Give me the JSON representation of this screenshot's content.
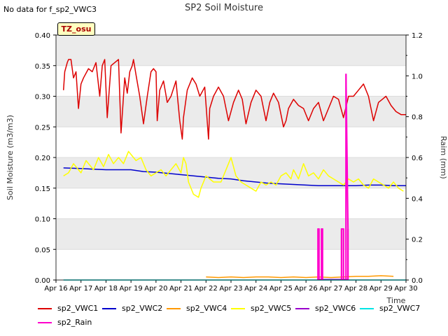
{
  "no_data_text": "No data for f_sp2_VWC3",
  "badge_text": "TZ_osu",
  "chart_data": {
    "type": "line",
    "title": "SP2 Soil Moisture",
    "xlabel": "Time",
    "ylabel": "Soil Moisture (m3/m3)",
    "ylabel_right": "Raim (mm)",
    "xlim": [
      0,
      14
    ],
    "ylim": [
      0,
      0.4
    ],
    "ylim_right": [
      0,
      1.2
    ],
    "x_tick_values": [
      0,
      1,
      2,
      3,
      4,
      5,
      6,
      7,
      8,
      9,
      10,
      11,
      12,
      13,
      14
    ],
    "x_tick_labels": [
      "Apr 16",
      "Apr 17",
      "Apr 18",
      "Apr 19",
      "Apr 20",
      "Apr 21",
      "Apr 22",
      "Apr 23",
      "Apr 24",
      "Apr 25",
      "Apr 26",
      "Apr 27",
      "Apr 28",
      "Apr 29",
      "Apr 30"
    ],
    "y_tick_values": [
      0,
      0.05,
      0.1,
      0.15,
      0.2,
      0.25,
      0.3,
      0.35,
      0.4
    ],
    "y_tick_labels": [
      "0.00",
      "0.05",
      "0.10",
      "0.15",
      "0.20",
      "0.25",
      "0.30",
      "0.35",
      "0.40"
    ],
    "y2_tick_values": [
      0,
      0.2,
      0.4,
      0.6,
      0.8,
      1.0,
      1.2
    ],
    "y2_tick_labels": [
      "0.0",
      "0.2",
      "0.4",
      "0.6",
      "0.8",
      "1.0",
      "1.2"
    ],
    "grid": "horizontal bands",
    "legend_placement": "bottom",
    "series": [
      {
        "name": "sp2_VWC1",
        "color": "#dd0000",
        "axis": "left",
        "x": [
          0.3,
          0.35,
          0.45,
          0.5,
          0.6,
          0.7,
          0.8,
          0.9,
          1.0,
          1.1,
          1.3,
          1.45,
          1.6,
          1.75,
          1.85,
          1.95,
          2.05,
          2.2,
          2.35,
          2.5,
          2.6,
          2.75,
          2.85,
          2.95,
          3.05,
          3.1,
          3.2,
          3.35,
          3.5,
          3.65,
          3.8,
          3.9,
          4.0,
          4.05,
          4.15,
          4.3,
          4.45,
          4.6,
          4.8,
          4.95,
          5.05,
          5.1,
          5.25,
          5.45,
          5.6,
          5.75,
          5.95,
          6.1,
          6.15,
          6.3,
          6.5,
          6.7,
          6.9,
          7.1,
          7.3,
          7.45,
          7.6,
          7.8,
          8.0,
          8.2,
          8.4,
          8.55,
          8.7,
          8.9,
          9.1,
          9.2,
          9.3,
          9.5,
          9.7,
          9.9,
          10.1,
          10.3,
          10.5,
          10.7,
          10.9,
          11.1,
          11.3,
          11.5,
          11.7,
          11.9,
          12.1,
          12.3,
          12.5,
          12.7,
          12.9,
          13.05,
          13.2,
          13.4,
          13.6,
          13.8,
          13.9,
          14.0
        ],
        "y": [
          0.31,
          0.34,
          0.355,
          0.36,
          0.36,
          0.33,
          0.34,
          0.28,
          0.32,
          0.33,
          0.345,
          0.34,
          0.355,
          0.3,
          0.35,
          0.36,
          0.265,
          0.35,
          0.355,
          0.36,
          0.24,
          0.33,
          0.305,
          0.34,
          0.35,
          0.36,
          0.335,
          0.3,
          0.255,
          0.3,
          0.34,
          0.345,
          0.34,
          0.26,
          0.31,
          0.325,
          0.29,
          0.3,
          0.325,
          0.26,
          0.23,
          0.265,
          0.31,
          0.33,
          0.32,
          0.3,
          0.315,
          0.23,
          0.28,
          0.3,
          0.315,
          0.3,
          0.26,
          0.29,
          0.31,
          0.295,
          0.255,
          0.29,
          0.31,
          0.3,
          0.26,
          0.29,
          0.305,
          0.29,
          0.25,
          0.26,
          0.28,
          0.295,
          0.285,
          0.28,
          0.26,
          0.28,
          0.29,
          0.26,
          0.28,
          0.3,
          0.295,
          0.265,
          0.3,
          0.3,
          0.31,
          0.32,
          0.3,
          0.26,
          0.29,
          0.295,
          0.3,
          0.285,
          0.275,
          0.27,
          0.27,
          0.27
        ]
      },
      {
        "name": "sp2_VWC2",
        "color": "#0000cc",
        "axis": "left",
        "x": [
          0.3,
          1.0,
          2.0,
          3.0,
          3.5,
          4.0,
          4.5,
          5.0,
          5.5,
          6.0,
          6.5,
          7.0,
          7.5,
          8.0,
          8.5,
          9.0,
          9.5,
          10.0,
          10.5,
          11.0,
          11.5,
          12.0,
          12.5,
          13.0,
          13.5,
          14.0
        ],
        "y": [
          0.183,
          0.182,
          0.18,
          0.18,
          0.177,
          0.176,
          0.174,
          0.172,
          0.17,
          0.168,
          0.166,
          0.165,
          0.162,
          0.16,
          0.158,
          0.157,
          0.156,
          0.155,
          0.154,
          0.154,
          0.154,
          0.154,
          0.155,
          0.155,
          0.154,
          0.154
        ]
      },
      {
        "name": "sp2_VWC4",
        "color": "#ff9900",
        "axis": "left",
        "x": [
          6.0,
          6.5,
          7.0,
          7.5,
          8.0,
          8.5,
          9.0,
          9.5,
          10.0,
          10.5,
          11.0,
          11.5,
          12.0,
          12.5,
          13.0,
          13.5
        ],
        "y": [
          0.005,
          0.004,
          0.005,
          0.004,
          0.005,
          0.005,
          0.004,
          0.005,
          0.004,
          0.005,
          0.004,
          0.005,
          0.006,
          0.006,
          0.007,
          0.006
        ]
      },
      {
        "name": "sp2_VWC5",
        "color": "#ffff00",
        "axis": "left",
        "x": [
          0.3,
          0.5,
          0.7,
          1.0,
          1.2,
          1.5,
          1.7,
          1.9,
          2.1,
          2.3,
          2.5,
          2.7,
          2.9,
          3.1,
          3.2,
          3.4,
          3.6,
          3.8,
          4.0,
          4.2,
          4.4,
          4.6,
          4.8,
          5.0,
          5.1,
          5.2,
          5.3,
          5.5,
          5.7,
          5.8,
          6.0,
          6.3,
          6.6,
          6.9,
          7.0,
          7.2,
          7.4,
          7.6,
          7.8,
          8.0,
          8.2,
          8.4,
          8.6,
          8.8,
          9.0,
          9.2,
          9.4,
          9.5,
          9.7,
          9.9,
          10.1,
          10.3,
          10.5,
          10.7,
          10.9,
          11.1,
          11.3,
          11.5,
          11.7,
          11.9,
          12.1,
          12.3,
          12.5,
          12.7,
          12.9,
          13.1,
          13.3,
          13.5,
          13.7,
          13.9
        ],
        "y": [
          0.17,
          0.175,
          0.19,
          0.175,
          0.195,
          0.18,
          0.2,
          0.185,
          0.205,
          0.19,
          0.2,
          0.19,
          0.21,
          0.2,
          0.195,
          0.2,
          0.18,
          0.17,
          0.175,
          0.18,
          0.17,
          0.18,
          0.19,
          0.175,
          0.2,
          0.19,
          0.16,
          0.14,
          0.135,
          0.15,
          0.17,
          0.16,
          0.16,
          0.19,
          0.2,
          0.17,
          0.16,
          0.155,
          0.15,
          0.145,
          0.16,
          0.155,
          0.16,
          0.155,
          0.17,
          0.175,
          0.165,
          0.18,
          0.165,
          0.19,
          0.17,
          0.175,
          0.165,
          0.18,
          0.17,
          0.165,
          0.16,
          0.155,
          0.165,
          0.16,
          0.165,
          0.155,
          0.15,
          0.165,
          0.16,
          0.155,
          0.15,
          0.16,
          0.15,
          0.145
        ]
      },
      {
        "name": "sp2_VWC6",
        "color": "#9900cc",
        "axis": "left",
        "x": [
          10.5,
          10.6,
          10.75,
          10.9,
          11.1,
          11.3,
          11.5,
          11.7
        ],
        "y": [
          0.001,
          0.001,
          0.001,
          0.001,
          0.001,
          0.001,
          0.001,
          0.001
        ]
      },
      {
        "name": "sp2_VWC7",
        "color": "#00e5e5",
        "axis": "left",
        "x": [
          0.3,
          14.0
        ],
        "y": [
          0.0,
          0.0
        ]
      },
      {
        "name": "sp2_Rain",
        "color": "#ff00cc",
        "axis": "right",
        "x": [
          10.48,
          10.52,
          10.62,
          10.66,
          11.42,
          11.5,
          11.6,
          11.68
        ],
        "y": [
          0.25,
          0.25,
          0.25,
          0.25,
          0.25,
          0.25,
          1.01,
          0.25
        ]
      }
    ]
  }
}
